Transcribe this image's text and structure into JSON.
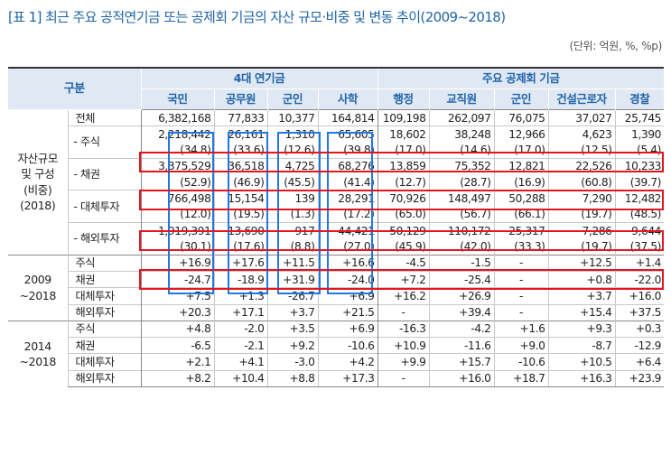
{
  "title": "[표 1] 최근 주요 공적연기금 또는 공제회 기금의 자산 규모·비중 및 변동 추이(2009~2018)",
  "unit": "(단위: 억원, %, %p)",
  "header": {
    "gubun": "구분",
    "group1": "4대 연기금",
    "group2": "주요 공제회 기금",
    "cols": [
      "국민",
      "공무원",
      "군인",
      "사학",
      "행정",
      "교직원",
      "군인",
      "건설근로자",
      "경찰"
    ]
  },
  "sections": [
    {
      "group": "자산규모\n및 구성\n(비중)\n(2018)",
      "rows": [
        {
          "label": "전체",
          "values": [
            "6,382,168",
            "77,833",
            "10,377",
            "164,814",
            "109,198",
            "262,097",
            "76,075",
            "37,027",
            "25,745"
          ]
        },
        {
          "label": "- 주식",
          "values": [
            "2,218,442",
            "26,161",
            "1,310",
            "65,605",
            "18,602",
            "38,248",
            "12,966",
            "4,623",
            "1,390"
          ]
        },
        {
          "label": "",
          "values": [
            "(34.8)",
            "(33.6)",
            "(12.6)",
            "(39.8)",
            "(17.0)",
            "(14.6)",
            "(17.0)",
            "(12.5)",
            "(5.4)"
          ]
        },
        {
          "label": "- 채권",
          "values": [
            "3,375,529",
            "36,518",
            "4,725",
            "68,276",
            "13,859",
            "75,352",
            "12,821",
            "22,526",
            "10,233"
          ]
        },
        {
          "label": "",
          "values": [
            "(52.9)",
            "(46.9)",
            "(45.5)",
            "(41.4)",
            "(12.7)",
            "(28.7)",
            "(16.9)",
            "(60.8)",
            "(39.7)"
          ]
        },
        {
          "label": "- 대체투자",
          "values": [
            "766,498",
            "15,154",
            "139",
            "28,291",
            "70,926",
            "148,497",
            "50,288",
            "7,290",
            "12,482"
          ]
        },
        {
          "label": "",
          "values": [
            "(12.0)",
            "(19.5)",
            "(1.3)",
            "(17.2)",
            "(65.0)",
            "(56.7)",
            "(66.1)",
            "(19.7)",
            "(48.5)"
          ]
        },
        {
          "label": "- 해외투자",
          "values": [
            "1,919,391",
            "13,690",
            "917",
            "44,421",
            "50,129",
            "110,172",
            "25,317",
            "7,286",
            "9,644"
          ]
        },
        {
          "label": "",
          "values": [
            "(30.1)",
            "(17.6)",
            "(8.8)",
            "(27.0)",
            "(45.9)",
            "(42.0)",
            "(33.3)",
            "(19.7)",
            "(37.5)"
          ]
        }
      ]
    },
    {
      "group": "2009\n~2018",
      "rows": [
        {
          "label": "주식",
          "values": [
            "+16.9",
            "+17.6",
            "+11.5",
            "+16.6",
            "-4.5",
            "-1.5",
            "-",
            "+12.5",
            "+1.4"
          ]
        },
        {
          "label": "채권",
          "values": [
            "-24.7",
            "-18.9",
            "+31.9",
            "-24.0",
            "+7.2",
            "-25.4",
            "-",
            "+0.8",
            "-22.0"
          ]
        },
        {
          "label": "대체투자",
          "values": [
            "+7.5",
            "+1.3",
            "-26.7",
            "+6.9",
            "+16.2",
            "+26.9",
            "-",
            "+3.7",
            "+16.0"
          ]
        },
        {
          "label": "해외투자",
          "values": [
            "+20.3",
            "+17.1",
            "+3.7",
            "+21.5",
            "-",
            "+39.4",
            "-",
            "+15.4",
            "+37.5"
          ]
        }
      ]
    },
    {
      "group": "2014\n~2018",
      "rows": [
        {
          "label": "주식",
          "values": [
            "+4.8",
            "-2.0",
            "+3.5",
            "+6.9",
            "-16.3",
            "-4.2",
            "+1.6",
            "+9.3",
            "+0.3"
          ]
        },
        {
          "label": "채권",
          "values": [
            "-6.5",
            "-2.1",
            "+9.2",
            "-10.6",
            "+10.9",
            "-11.6",
            "+9.0",
            "-8.7",
            "-12.9"
          ]
        },
        {
          "label": "대체투자",
          "values": [
            "+2.1",
            "+4.1",
            "-3.0",
            "+4.2",
            "+9.9",
            "+15.7",
            "-10.6",
            "+10.5",
            "+6.4"
          ]
        },
        {
          "label": "해외투자",
          "values": [
            "+8.2",
            "+10.4",
            "+8.8",
            "+17.3",
            "-",
            "+16.0",
            "+18.7",
            "+16.3",
            "+23.9"
          ]
        }
      ]
    }
  ],
  "highlight_colors": {
    "blue": "#1e78e6",
    "red": "#e6141e",
    "header_bg": "#dfe8f3",
    "title": "#1f64a8"
  }
}
